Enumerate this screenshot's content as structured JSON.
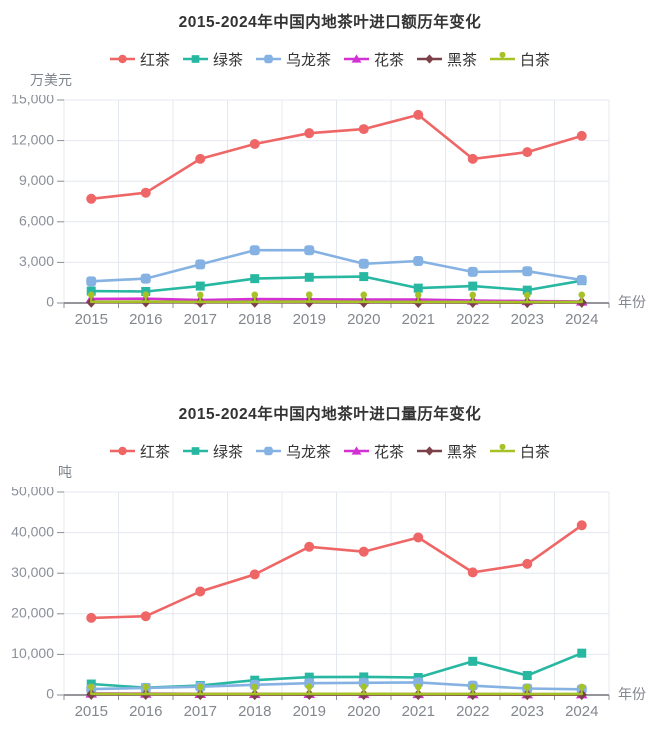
{
  "chart_data": [
    {
      "type": "line",
      "title": "2015-2024年中国内地茶叶进口额历年变化",
      "unit_label": "万美元",
      "xlabel": "年份",
      "categories": [
        "2015",
        "2016",
        "2017",
        "2018",
        "2019",
        "2020",
        "2021",
        "2022",
        "2023",
        "2024"
      ],
      "ylim": [
        0,
        15000
      ],
      "ytick_interval": 3000,
      "grid": true,
      "legend_position": "top",
      "series": [
        {
          "name": "红茶",
          "color": "#ee6666",
          "symbol": "circle",
          "values": [
            7700,
            8150,
            10650,
            11750,
            12550,
            12850,
            13900,
            10650,
            11150,
            12350
          ]
        },
        {
          "name": "绿茶",
          "color": "#28b8a2",
          "symbol": "square",
          "values": [
            880,
            850,
            1250,
            1800,
            1900,
            1950,
            1100,
            1250,
            950,
            1650
          ]
        },
        {
          "name": "乌龙茶",
          "color": "#85b2e2",
          "symbol": "roundRect",
          "values": [
            1600,
            1800,
            2850,
            3900,
            3900,
            2900,
            3100,
            2300,
            2350,
            1700
          ]
        },
        {
          "name": "花茶",
          "color": "#d431d4",
          "symbol": "triangle",
          "values": [
            300,
            320,
            220,
            290,
            270,
            250,
            250,
            180,
            150,
            120
          ]
        },
        {
          "name": "黑茶",
          "color": "#7c4048",
          "symbol": "diamond",
          "values": [
            60,
            70,
            50,
            60,
            60,
            50,
            40,
            40,
            30,
            50
          ]
        },
        {
          "name": "白茶",
          "color": "#a5c227",
          "symbol": "pin",
          "values": [
            90,
            100,
            80,
            90,
            100,
            90,
            80,
            80,
            70,
            90
          ]
        }
      ]
    },
    {
      "type": "line",
      "title": "2015-2024年中国内地茶叶进口量历年变化",
      "unit_label": "吨",
      "xlabel": "年份",
      "categories": [
        "2015",
        "2016",
        "2017",
        "2018",
        "2019",
        "2020",
        "2021",
        "2022",
        "2023",
        "2024"
      ],
      "ylim": [
        0,
        50000
      ],
      "ytick_interval": 10000,
      "grid": true,
      "legend_position": "top",
      "series": [
        {
          "name": "红茶",
          "color": "#ee6666",
          "symbol": "circle",
          "values": [
            19000,
            19400,
            25500,
            29700,
            36500,
            35300,
            38800,
            30200,
            32300,
            41800
          ]
        },
        {
          "name": "绿茶",
          "color": "#28b8a2",
          "symbol": "square",
          "values": [
            2700,
            1800,
            2350,
            3650,
            4400,
            4450,
            4300,
            8300,
            4800,
            10300
          ]
        },
        {
          "name": "乌龙茶",
          "color": "#85b2e2",
          "symbol": "roundRect",
          "values": [
            1450,
            1750,
            2050,
            2500,
            2900,
            3000,
            3100,
            2300,
            1600,
            1400
          ]
        },
        {
          "name": "花茶",
          "color": "#d431d4",
          "symbol": "triangle",
          "values": [
            400,
            350,
            300,
            300,
            300,
            280,
            260,
            220,
            200,
            200
          ]
        },
        {
          "name": "黑茶",
          "color": "#7c4048",
          "symbol": "diamond",
          "values": [
            150,
            120,
            100,
            100,
            110,
            100,
            90,
            80,
            70,
            90
          ]
        },
        {
          "name": "白茶",
          "color": "#a5c227",
          "symbol": "pin",
          "values": [
            300,
            280,
            260,
            280,
            300,
            300,
            280,
            260,
            240,
            280
          ]
        }
      ]
    }
  ]
}
